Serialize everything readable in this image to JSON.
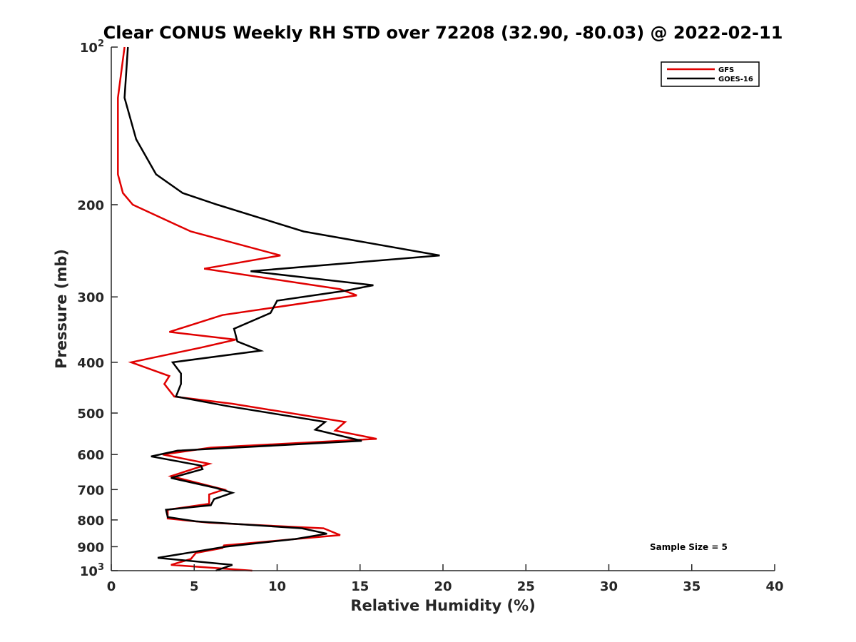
{
  "chart_data": {
    "type": "line",
    "title": "Clear CONUS Weekly RH STD over 72208 (32.90, -80.03) @ 2022-02-11",
    "xlabel": "Relative Humidity (%)",
    "ylabel": "Pressure (mb)",
    "xlim": [
      0,
      40
    ],
    "ylim": [
      100,
      1000
    ],
    "y_scale": "log",
    "y_reversed": true,
    "x_ticks": [
      "0",
      "5",
      "10",
      "15",
      "20",
      "25",
      "30",
      "35",
      "40"
    ],
    "y_ticks": [
      {
        "value": 100,
        "base": "10",
        "exp": "2"
      },
      {
        "value": 200,
        "label": "200"
      },
      {
        "value": 300,
        "label": "300"
      },
      {
        "value": 400,
        "label": "400"
      },
      {
        "value": 500,
        "label": "500"
      },
      {
        "value": 600,
        "label": "600"
      },
      {
        "value": 700,
        "label": "700"
      },
      {
        "value": 800,
        "label": "800"
      },
      {
        "value": 900,
        "label": "900"
      },
      {
        "value": 1000,
        "base": "10",
        "exp": "3"
      }
    ],
    "grid": false,
    "legend_position": "top-right",
    "annotation": "Sample Size = 5",
    "series": [
      {
        "name": "GFS",
        "color": "#e00000",
        "points": [
          [
            0.8,
            100
          ],
          [
            0.4,
            125
          ],
          [
            0.4,
            150
          ],
          [
            0.4,
            175
          ],
          [
            0.7,
            190
          ],
          [
            1.3,
            200
          ],
          [
            4.8,
            225
          ],
          [
            10.2,
            250
          ],
          [
            5.6,
            265
          ],
          [
            13.8,
            290
          ],
          [
            14.8,
            298
          ],
          [
            6.7,
            325
          ],
          [
            3.5,
            350
          ],
          [
            7.5,
            362
          ],
          [
            5.4,
            375
          ],
          [
            1.2,
            400
          ],
          [
            3.5,
            425
          ],
          [
            3.2,
            440
          ],
          [
            3.8,
            465
          ],
          [
            7.3,
            480
          ],
          [
            14.1,
            520
          ],
          [
            13.5,
            540
          ],
          [
            16.0,
            560
          ],
          [
            6.0,
            582
          ],
          [
            3.1,
            600
          ],
          [
            5.9,
            625
          ],
          [
            3.6,
            660
          ],
          [
            6.4,
            695
          ],
          [
            6.8,
            700
          ],
          [
            5.9,
            715
          ],
          [
            5.9,
            745
          ],
          [
            3.4,
            765
          ],
          [
            3.4,
            795
          ],
          [
            5.9,
            810
          ],
          [
            12.8,
            830
          ],
          [
            13.8,
            855
          ],
          [
            11.1,
            870
          ],
          [
            6.8,
            895
          ],
          [
            6.7,
            905
          ],
          [
            5.1,
            925
          ],
          [
            4.8,
            950
          ],
          [
            3.6,
            975
          ],
          [
            8.5,
            1000
          ]
        ]
      },
      {
        "name": "GOES-16",
        "color": "#000000",
        "points": [
          [
            1.0,
            100
          ],
          [
            0.8,
            125
          ],
          [
            1.5,
            150
          ],
          [
            2.7,
            175
          ],
          [
            4.3,
            190
          ],
          [
            6.4,
            200
          ],
          [
            11.6,
            225
          ],
          [
            19.8,
            250
          ],
          [
            8.4,
            268
          ],
          [
            15.8,
            285
          ],
          [
            14.1,
            292
          ],
          [
            10.0,
            305
          ],
          [
            9.6,
            322
          ],
          [
            7.4,
            345
          ],
          [
            7.6,
            365
          ],
          [
            9.0,
            380
          ],
          [
            3.7,
            400
          ],
          [
            4.2,
            420
          ],
          [
            4.2,
            440
          ],
          [
            3.9,
            465
          ],
          [
            7.0,
            485
          ],
          [
            12.9,
            520
          ],
          [
            12.3,
            538
          ],
          [
            15.1,
            565
          ],
          [
            4.0,
            590
          ],
          [
            2.4,
            605
          ],
          [
            5.4,
            630
          ],
          [
            5.5,
            640
          ],
          [
            3.6,
            665
          ],
          [
            6.3,
            695
          ],
          [
            7.3,
            710
          ],
          [
            6.2,
            730
          ],
          [
            6.0,
            750
          ],
          [
            3.3,
            765
          ],
          [
            3.4,
            790
          ],
          [
            5.1,
            805
          ],
          [
            11.5,
            830
          ],
          [
            13.0,
            850
          ],
          [
            11.1,
            870
          ],
          [
            6.9,
            900
          ],
          [
            2.8,
            945
          ],
          [
            7.3,
            975
          ],
          [
            6.3,
            1000
          ]
        ]
      }
    ]
  }
}
